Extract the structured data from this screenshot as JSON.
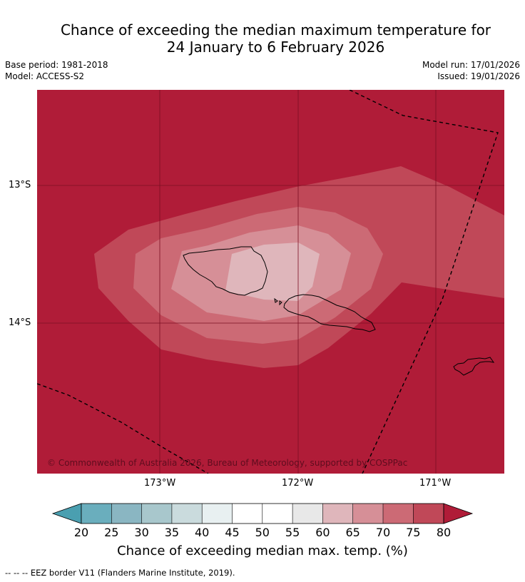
{
  "title": {
    "line1": "Chance of exceeding the median maximum temperature for",
    "line2": "24 January to 6 February 2026"
  },
  "meta": {
    "base_period": "Base period: 1981-2018",
    "model": "Model: ACCESS-S2",
    "model_run": "Model run: 17/01/2026",
    "issued": "Issued: 19/01/2026"
  },
  "map": {
    "lat_labels": [
      "13°S",
      "14°S"
    ],
    "lon_labels": [
      "173°W",
      "172°W",
      "171°W"
    ],
    "copyright": "© Commonwealth of Australia 2026, Bureau of Meteorology, supported by COSPPac",
    "colors": {
      "c80": "#b01c38",
      "c75": "#c04858",
      "c70": "#cc6a75",
      "c65": "#d68f97",
      "c60": "#dfb6bb",
      "grid": "#7a0f22",
      "coast": "#000000"
    }
  },
  "colorbar": {
    "ticks": [
      "20",
      "25",
      "30",
      "35",
      "40",
      "45",
      "50",
      "55",
      "60",
      "65",
      "70",
      "75",
      "80"
    ],
    "colors": [
      "#4a9fb0",
      "#6aaebd",
      "#8ab6c2",
      "#a8c7cc",
      "#cadbdd",
      "#e8f0f1",
      "#ffffff",
      "#ffffff",
      "#e8e8e8",
      "#dfb6bb",
      "#d68f97",
      "#cc6a75",
      "#c04858",
      "#b01c38"
    ],
    "title": "Chance of exceeding median max. temp. (%)"
  },
  "footnote": "--  --  -- EEZ border V11 (Flanders Marine Institute, 2019)."
}
